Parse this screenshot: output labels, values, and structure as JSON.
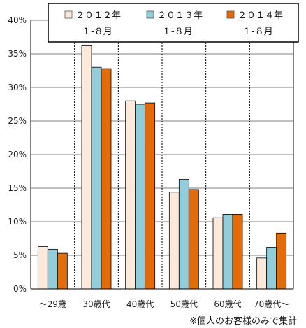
{
  "chart_data": {
    "type": "bar",
    "categories": [
      "～29歳",
      "30歳代",
      "40歳代",
      "50歳代",
      "60歳代",
      "70歳代～"
    ],
    "series": [
      {
        "name": "２０１２年 １-８月",
        "line1": "２０１２年",
        "line2": "１-８月",
        "color": "#fde9d9",
        "values": [
          6.3,
          36.2,
          28.0,
          14.4,
          10.6,
          4.6
        ]
      },
      {
        "name": "２０１３年 １-８月",
        "line1": "２０１３年",
        "line2": "１-８月",
        "color": "#92cddc",
        "values": [
          5.9,
          33.0,
          27.5,
          16.3,
          11.1,
          6.2
        ]
      },
      {
        "name": "２０１４年 １-８月",
        "line1": "２０１４年",
        "line2": "１-８月",
        "color": "#e36c09",
        "values": [
          5.3,
          32.8,
          27.7,
          14.8,
          11.1,
          8.3
        ]
      }
    ],
    "y_ticks": [
      "0%",
      "5%",
      "10%",
      "15%",
      "20%",
      "25%",
      "30%",
      "35%",
      "40%"
    ],
    "ylim": [
      0,
      40
    ],
    "grid": true,
    "legend_position": "top-right",
    "footnote": "※個人のお客様のみで集計"
  }
}
